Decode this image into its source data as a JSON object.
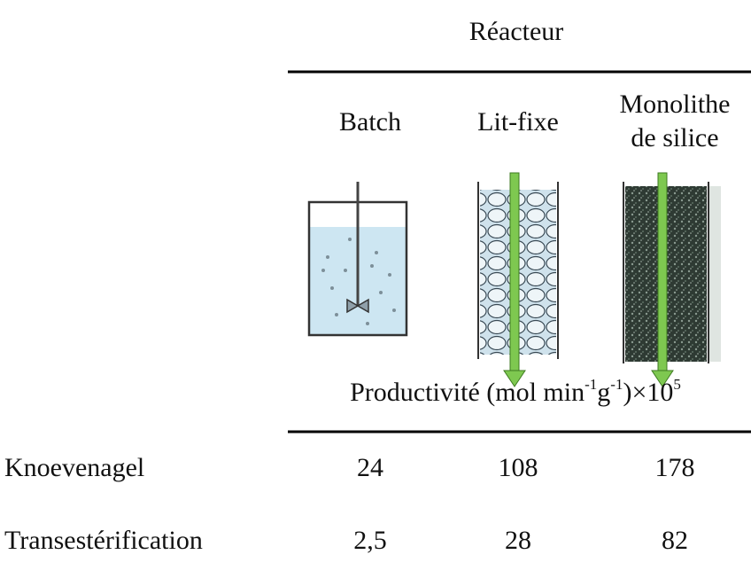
{
  "header": {
    "title": "Réacteur"
  },
  "columns": [
    [
      "Batch"
    ],
    [
      "Lit-fixe"
    ],
    [
      "Monolithe",
      "de silice"
    ]
  ],
  "unit_label": [
    "Productivité (mol min",
    "-1",
    "g",
    "-1",
    ")×10",
    "5"
  ],
  "table": {
    "rows": [
      [
        "Knoevenagel",
        "24",
        "108",
        "178"
      ],
      [
        "Transestérification",
        "2,5",
        "28",
        "82"
      ]
    ]
  }
}
